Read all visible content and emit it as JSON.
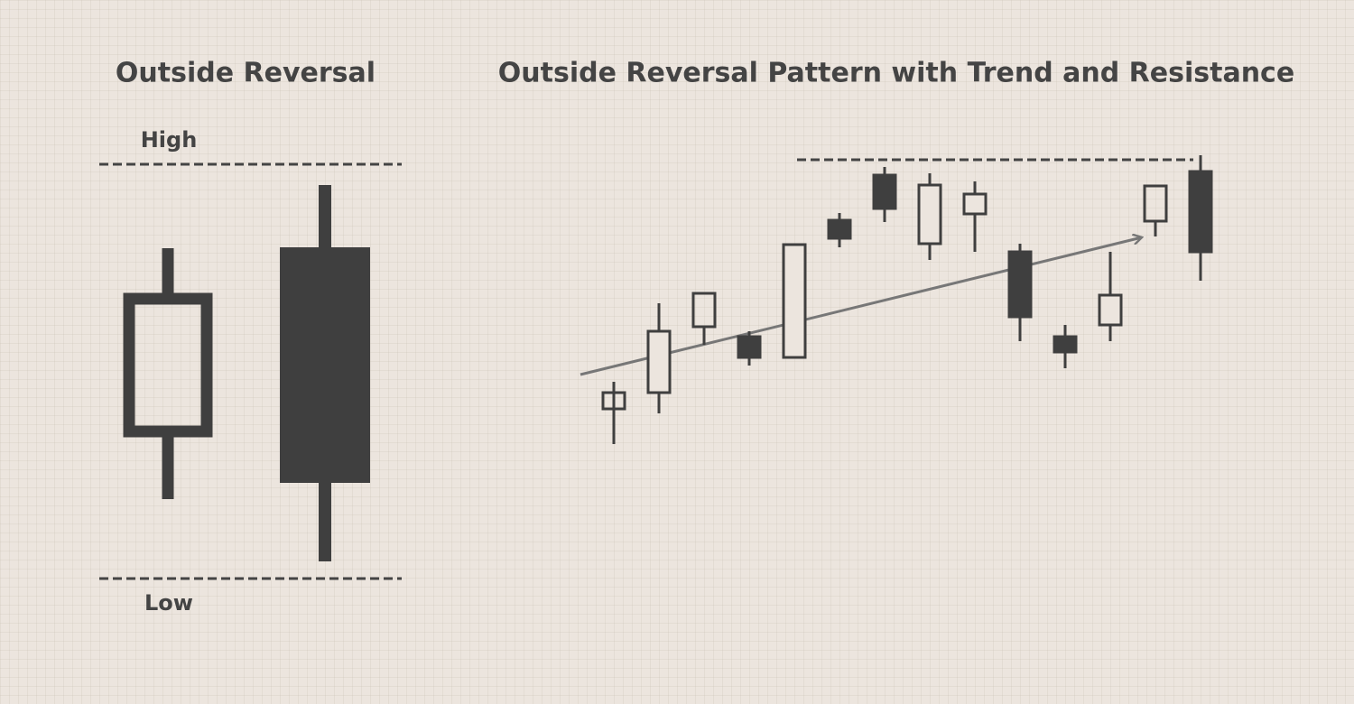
{
  "left": {
    "title": "Outside Reversal",
    "high_label": "High",
    "low_label": "Low"
  },
  "right": {
    "title": "Outside Reversal Pattern with Trend and Resistance"
  }
}
